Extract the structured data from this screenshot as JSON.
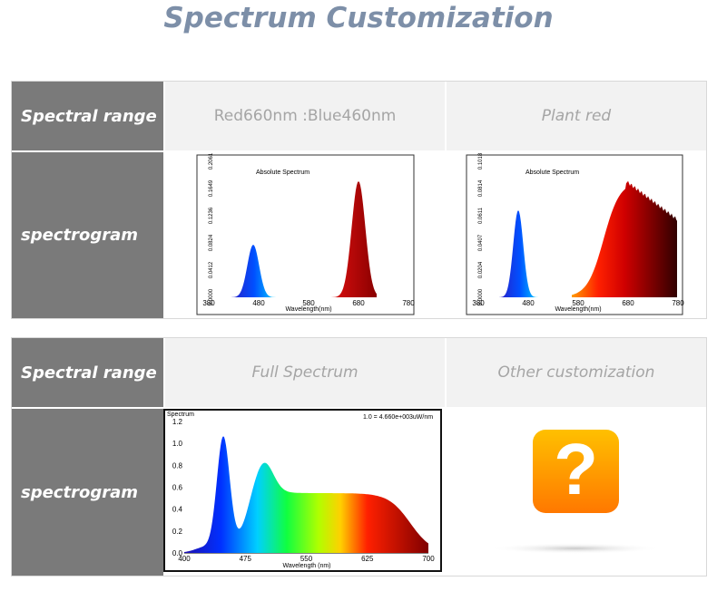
{
  "title": "Spectrum Customization",
  "tables": [
    {
      "header_label": "Spectral range",
      "row_label": "spectrogram",
      "columns": [
        {
          "range": "Red660nm :Blue460nm",
          "chart": {
            "title": "Absolute Spectrum",
            "x_label": "Wavelength(nm)",
            "xticks": [
              "380",
              "480",
              "580",
              "680",
              "780"
            ],
            "yticks": [
              "0.0000",
              "0.0412",
              "0.0824",
              "0.1236",
              "0.1649",
              "0.2061"
            ]
          }
        },
        {
          "range": "Plant red",
          "chart": {
            "title": "Absolute Spectrum",
            "x_label": "Wavelength(nm)",
            "xticks": [
              "380",
              "480",
              "580",
              "680",
              "780"
            ],
            "yticks": [
              "0.0000",
              "0.0204",
              "0.0407",
              "0.0611",
              "0.0814",
              "0.1018"
            ]
          }
        }
      ]
    },
    {
      "header_label": "Spectral range",
      "row_label": "spectrogram",
      "columns": [
        {
          "range": "Full Spectrum",
          "chart": {
            "title": "Spectrum",
            "note": "1.0 = 4.660e+003uW/nm",
            "x_label": "Wavelength (nm)",
            "xticks": [
              "400",
              "475",
              "550",
              "625",
              "700"
            ],
            "yticks": [
              "0.0",
              "0.2",
              "0.4",
              "0.6",
              "0.8",
              "1.0",
              "1.2"
            ]
          }
        },
        {
          "range": "Other customization",
          "icon": "?"
        }
      ]
    }
  ]
}
